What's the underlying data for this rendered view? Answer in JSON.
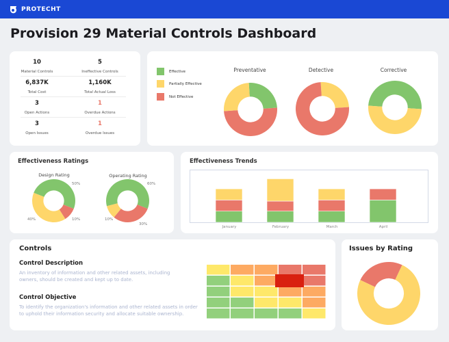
{
  "header": {
    "brand": "PROTECHT",
    "brand_color": "#1a48d4"
  },
  "page_title": "Provision 29 Material Controls Dashboard",
  "colors": {
    "effective": "#82c56c",
    "partial": "#fed66a",
    "not_effective": "#e9786a"
  },
  "stats": [
    {
      "value": "10",
      "label": "Material Controls"
    },
    {
      "value": "5",
      "label": "Ineffective Controls"
    },
    {
      "value": "6,837K",
      "label": "Total Cost"
    },
    {
      "value": "1,160K",
      "label": "Total Actual Loss"
    },
    {
      "value": "3",
      "label": "Open Actions"
    },
    {
      "value": "1",
      "label": "Overdue Actions",
      "alert": true
    },
    {
      "value": "3",
      "label": "Open Issues"
    },
    {
      "value": "1",
      "label": "Overdue Issues",
      "alert": true
    }
  ],
  "legend": [
    "Effective",
    "Partially Effective",
    "Not Effective"
  ],
  "chart_data": [
    {
      "type": "pie",
      "title": "Preventative",
      "categories": [
        "Effective",
        "Not Effective",
        "Partially Effective"
      ],
      "values": [
        25,
        50,
        25
      ]
    },
    {
      "type": "pie",
      "title": "Detective",
      "categories": [
        "Partially Effective",
        "Not Effective"
      ],
      "values": [
        25,
        75
      ]
    },
    {
      "type": "pie",
      "title": "Corrective",
      "categories": [
        "Effective",
        "Partially Effective"
      ],
      "values": [
        50,
        50
      ]
    },
    {
      "type": "pie",
      "title": "Design Rating",
      "categories": [
        "Effective",
        "Not Effective",
        "Partially Effective"
      ],
      "values": [
        50,
        10,
        40
      ],
      "labels": [
        "50%",
        "10%",
        "40%"
      ]
    },
    {
      "type": "pie",
      "title": "Operating Rating",
      "categories": [
        "Effective",
        "Not Effective",
        "Partially Effective"
      ],
      "values": [
        60,
        30,
        10
      ],
      "labels": [
        "60%",
        "30%",
        "10%"
      ]
    },
    {
      "type": "bar",
      "stacked": true,
      "title": "Effectiveness Trends",
      "categories": [
        "January",
        "February",
        "March",
        "April"
      ],
      "series": [
        {
          "name": "Effective",
          "values": [
            1,
            1,
            1,
            2
          ]
        },
        {
          "name": "Not Effective",
          "values": [
            1,
            0.9,
            1,
            1
          ]
        },
        {
          "name": "Partially Effective",
          "values": [
            1,
            2,
            1,
            0
          ]
        }
      ]
    },
    {
      "type": "pie",
      "title": "Issues by Rating",
      "categories": [
        "Not Effective",
        "Partially Effective"
      ],
      "values": [
        25,
        75
      ]
    },
    {
      "type": "heatmap",
      "rows": [
        [
          "yellow",
          "orange",
          "orange",
          "red",
          "red"
        ],
        [
          "green",
          "yellow",
          "orange",
          "darkred",
          "red"
        ],
        [
          "green",
          "yellow",
          "yellow",
          "orange",
          "orange"
        ],
        [
          "green",
          "green",
          "yellow",
          "yellow",
          "orange"
        ],
        [
          "green",
          "green",
          "green",
          "green",
          "yellow"
        ]
      ]
    }
  ],
  "sections": {
    "ratings_title": "Effectiveness Ratings",
    "trends_title": "Effectiveness Trends",
    "controls_title": "Controls",
    "issues_title": "Issues by Rating"
  },
  "controls": {
    "desc_title": "Control Description",
    "desc": "An inventory of information and other related assets, including owners, should be created and kept up to date.",
    "obj_title": "Control Objective",
    "obj": "To identify the organization's information and other related assets in order to uphold their information security and allocate suitable ownership."
  }
}
